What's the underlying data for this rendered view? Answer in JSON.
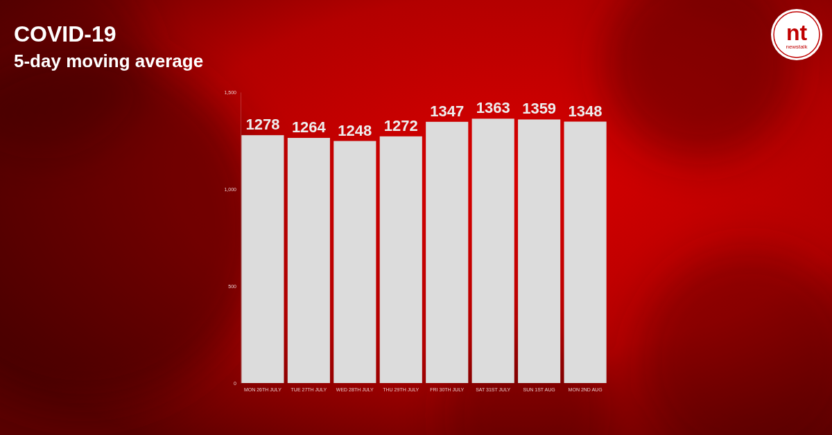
{
  "chart_data": {
    "type": "bar",
    "title": "COVID-19",
    "subtitle": "5-day moving average",
    "categories": [
      "MON 26TH JULY",
      "TUE 27TH JULY",
      "WED 28TH JULY",
      "THU 29TH JULY",
      "FRI 30TH JULY",
      "SAT 31ST JULY",
      "SUN 1ST AUG",
      "MON 2ND AUG"
    ],
    "values": [
      1278,
      1264,
      1248,
      1272,
      1347,
      1363,
      1359,
      1348
    ],
    "color": "#dcdcdc",
    "ylim": [
      0,
      1500
    ],
    "yticks": [
      0,
      500,
      {
        "value": 1000,
        "label": "1,000"
      },
      {
        "value": 1500,
        "label": "1,500"
      }
    ],
    "grid": false,
    "data_labels": true,
    "annotations": [
      "nt",
      "newstalk"
    ]
  }
}
